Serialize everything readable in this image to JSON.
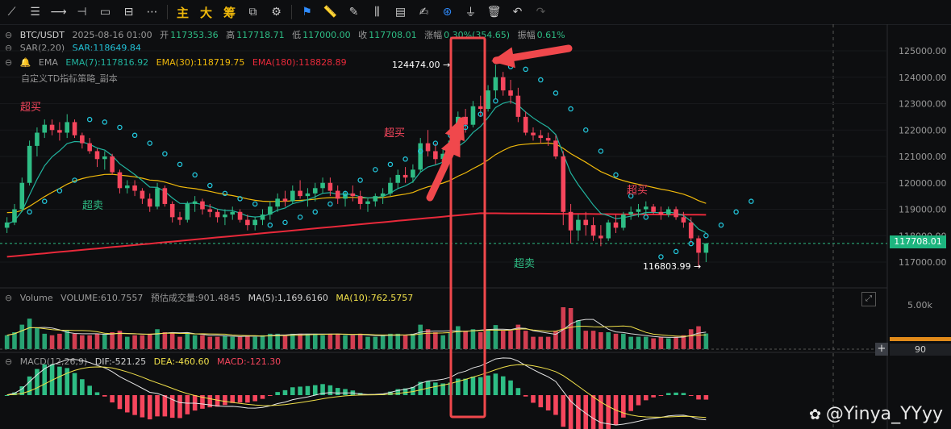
{
  "toolbar": {
    "icons": [
      "trendline-icon",
      "hlines-icon",
      "ray-icon",
      "hline-icon",
      "rect-icon",
      "fib-icon",
      "more-icon"
    ],
    "main_label": "主",
    "big_label": "大",
    "chip_label": "筹",
    "right_icons": [
      "screenshot-icon",
      "settings-icon",
      "bookmark-icon",
      "ruler-icon",
      "pencil-icon",
      "compare-icon",
      "calendar-icon",
      "note-icon",
      "magnet-icon",
      "filter-icon",
      "trash-icon",
      "undo-icon",
      "redo-icon"
    ]
  },
  "header": {
    "symbol": "BTC/USDT",
    "datetime": "2025-08-16 01:00",
    "open_label": "开",
    "open": "117353.36",
    "high_label": "高",
    "high": "117718.71",
    "low_label": "低",
    "low": "117000.00",
    "close_label": "收",
    "close": "117708.01",
    "change_label": "涨幅",
    "change": "0.30%(354.65)",
    "amp_label": "振幅",
    "amp": "0.61%"
  },
  "indicators": {
    "sar_name": "SAR(2,20)",
    "sar_value": "SAR:118649.84",
    "ema_name": "EMA",
    "ema7": "EMA(7):117816.92",
    "ema30": "EMA(30):118719.75",
    "ema180": "EMA(180):118828.89",
    "td_name": "自定义TD指标策略_副本"
  },
  "volume_legend": {
    "name": "Volume",
    "volume": "VOLUME:610.7557",
    "est": "预估成交量:901.4845",
    "ma5": "MA(5):1,169.6160",
    "ma10": "MA(10):762.5757"
  },
  "macd_legend": {
    "name": "MACD(12,26,9)",
    "dif": "DIF:-521.25",
    "dea": "DEA:-460.60",
    "macd": "MACD:-121.30"
  },
  "annotations": {
    "high_marker": "124474.00 →",
    "low_marker": "116803.99 →",
    "overbought": "超买",
    "oversold": "超卖",
    "current_price": "117708.01",
    "volume_right_value": "90",
    "volume_axis_tick": "5.00k"
  },
  "watermark": "@Yinya_YYyy",
  "colors": {
    "up": "#2ebd85",
    "down": "#f6465d",
    "sar": "#22c4d9",
    "ema7": "#21b39e",
    "ema30": "#f0b90b",
    "ema180": "#e8293a",
    "highlight": "#f0484c"
  },
  "chart_data": {
    "type": "candlestick",
    "price_axis_ticks": [
      "125000.00",
      "124000.00",
      "123000.00",
      "122000.00",
      "121000.00",
      "120000.00",
      "119000.00",
      "118000.00",
      "117000.00"
    ],
    "ylim": [
      116550,
      125500
    ],
    "candles_ohlc": [
      [
        118300,
        118700,
        118100,
        118500
      ],
      [
        118500,
        119200,
        118400,
        119000
      ],
      [
        119000,
        120200,
        118900,
        120000
      ],
      [
        120000,
        121600,
        119900,
        121400
      ],
      [
        121400,
        122100,
        121000,
        121900
      ],
      [
        121900,
        122400,
        121700,
        122200
      ],
      [
        122200,
        122400,
        121800,
        122000
      ],
      [
        122000,
        122300,
        121600,
        121900
      ],
      [
        121900,
        122600,
        121700,
        122300
      ],
      [
        122300,
        122400,
        121700,
        121800
      ],
      [
        121800,
        121900,
        121300,
        121500
      ],
      [
        121500,
        121700,
        121100,
        121200
      ],
      [
        121200,
        121300,
        120600,
        120900
      ],
      [
        120900,
        121200,
        120500,
        121000
      ],
      [
        121000,
        121100,
        120300,
        120400
      ],
      [
        120400,
        120500,
        119600,
        119800
      ],
      [
        119800,
        120100,
        119600,
        119900
      ],
      [
        119900,
        120100,
        119500,
        119700
      ],
      [
        119700,
        119800,
        119200,
        119400
      ],
      [
        119400,
        119600,
        118900,
        119100
      ],
      [
        119100,
        120000,
        119000,
        119800
      ],
      [
        119800,
        119900,
        119100,
        119200
      ],
      [
        119200,
        119300,
        118500,
        118700
      ],
      [
        118700,
        118900,
        118400,
        118600
      ],
      [
        118600,
        119300,
        118500,
        119200
      ],
      [
        119200,
        119500,
        118900,
        119300
      ],
      [
        119300,
        119400,
        118800,
        119000
      ],
      [
        119000,
        119200,
        118700,
        118900
      ],
      [
        118900,
        119000,
        118500,
        118700
      ],
      [
        118700,
        119000,
        118400,
        118800
      ],
      [
        118800,
        119100,
        118600,
        118900
      ],
      [
        118900,
        119000,
        118500,
        118600
      ],
      [
        118600,
        118800,
        118200,
        118400
      ],
      [
        118400,
        118700,
        118200,
        118600
      ],
      [
        118600,
        119000,
        118400,
        118800
      ],
      [
        118800,
        119300,
        118600,
        119100
      ],
      [
        119100,
        119600,
        118900,
        119400
      ],
      [
        119400,
        119700,
        119100,
        119300
      ],
      [
        119300,
        119900,
        119200,
        119700
      ],
      [
        119700,
        120100,
        119400,
        119500
      ],
      [
        119500,
        119800,
        119100,
        119600
      ],
      [
        119600,
        120000,
        119300,
        119800
      ],
      [
        119800,
        120200,
        119600,
        120000
      ],
      [
        120000,
        120200,
        119500,
        119700
      ],
      [
        119700,
        119900,
        119200,
        119400
      ],
      [
        119400,
        119700,
        119100,
        119600
      ],
      [
        119600,
        119900,
        119300,
        119500
      ],
      [
        119500,
        119700,
        119000,
        119200
      ],
      [
        119200,
        119400,
        118900,
        119300
      ],
      [
        119300,
        119600,
        119100,
        119500
      ],
      [
        119500,
        119800,
        119200,
        119600
      ],
      [
        119600,
        120200,
        119500,
        120000
      ],
      [
        120000,
        120500,
        119800,
        120300
      ],
      [
        120300,
        120600,
        120000,
        120200
      ],
      [
        120200,
        120700,
        120000,
        120500
      ],
      [
        120500,
        121700,
        120400,
        121500
      ],
      [
        121500,
        122000,
        121000,
        121200
      ],
      [
        121200,
        121500,
        120700,
        120900
      ],
      [
        120900,
        121300,
        120700,
        121100
      ],
      [
        121100,
        121800,
        121000,
        121600
      ],
      [
        121600,
        122700,
        121500,
        122500
      ],
      [
        122500,
        122800,
        121900,
        122200
      ],
      [
        122200,
        123100,
        122100,
        122900
      ],
      [
        122900,
        123300,
        122500,
        122800
      ],
      [
        122800,
        123700,
        122700,
        123500
      ],
      [
        123500,
        124474,
        123200,
        124000
      ],
      [
        124000,
        124200,
        123300,
        123500
      ],
      [
        123500,
        123900,
        123000,
        123300
      ],
      [
        123300,
        123600,
        122300,
        122500
      ],
      [
        122500,
        122700,
        121800,
        121900
      ],
      [
        121900,
        122100,
        121600,
        121800
      ],
      [
        121800,
        122000,
        121500,
        121700
      ],
      [
        121700,
        121900,
        121400,
        121600
      ],
      [
        121600,
        121800,
        120900,
        121000
      ],
      [
        121000,
        121200,
        118400,
        118900
      ],
      [
        118900,
        119200,
        117700,
        118200
      ],
      [
        118200,
        118800,
        117800,
        118600
      ],
      [
        118600,
        118900,
        118000,
        118400
      ],
      [
        118400,
        118700,
        117800,
        118000
      ],
      [
        118000,
        118400,
        117600,
        117900
      ],
      [
        117900,
        118600,
        117800,
        118500
      ],
      [
        118500,
        118800,
        118100,
        118300
      ],
      [
        118300,
        118900,
        118200,
        118800
      ],
      [
        118800,
        119100,
        118600,
        118900
      ],
      [
        118900,
        119200,
        118700,
        119000
      ],
      [
        119000,
        119300,
        118800,
        119100
      ],
      [
        119100,
        119200,
        118800,
        118900
      ],
      [
        118900,
        119100,
        118600,
        118800
      ],
      [
        118800,
        119100,
        118700,
        119000
      ],
      [
        119000,
        119100,
        118600,
        118700
      ],
      [
        118700,
        118900,
        118300,
        118500
      ],
      [
        118500,
        118700,
        117700,
        117900
      ],
      [
        117900,
        118000,
        116803.99,
        117353.36
      ],
      [
        117353.36,
        117718.71,
        117000,
        117708.01
      ]
    ],
    "sar_points": [
      [
        3,
        118900
      ],
      [
        5,
        119300
      ],
      [
        7,
        119700
      ],
      [
        9,
        120100
      ],
      [
        11,
        122400
      ],
      [
        13,
        122300
      ],
      [
        15,
        122100
      ],
      [
        17,
        121800
      ],
      [
        19,
        121500
      ],
      [
        21,
        121100
      ],
      [
        23,
        120700
      ],
      [
        25,
        120300
      ],
      [
        27,
        119900
      ],
      [
        29,
        119600
      ],
      [
        31,
        119400
      ],
      [
        33,
        119200
      ],
      [
        35,
        118400
      ],
      [
        37,
        118500
      ],
      [
        39,
        118700
      ],
      [
        41,
        118900
      ],
      [
        43,
        119200
      ],
      [
        45,
        119600
      ],
      [
        47,
        120100
      ],
      [
        49,
        120500
      ],
      [
        51,
        120700
      ],
      [
        53,
        120900
      ],
      [
        55,
        121200
      ],
      [
        57,
        121500
      ],
      [
        59,
        121800
      ],
      [
        61,
        122100
      ],
      [
        63,
        122600
      ],
      [
        65,
        123100
      ],
      [
        67,
        124400
      ],
      [
        69,
        124300
      ],
      [
        71,
        123900
      ],
      [
        73,
        123400
      ],
      [
        75,
        122800
      ],
      [
        77,
        122000
      ],
      [
        79,
        121200
      ],
      [
        81,
        120300
      ],
      [
        83,
        119500
      ],
      [
        85,
        118700
      ],
      [
        87,
        117200
      ],
      [
        89,
        117400
      ],
      [
        91,
        117700
      ],
      [
        93,
        118000
      ],
      [
        95,
        118400
      ],
      [
        97,
        118900
      ],
      [
        99,
        119300
      ]
    ],
    "volume_axis_ticks": [
      "5.00k"
    ],
    "macd_series": [
      "DIF",
      "DEA",
      "MACD"
    ]
  }
}
